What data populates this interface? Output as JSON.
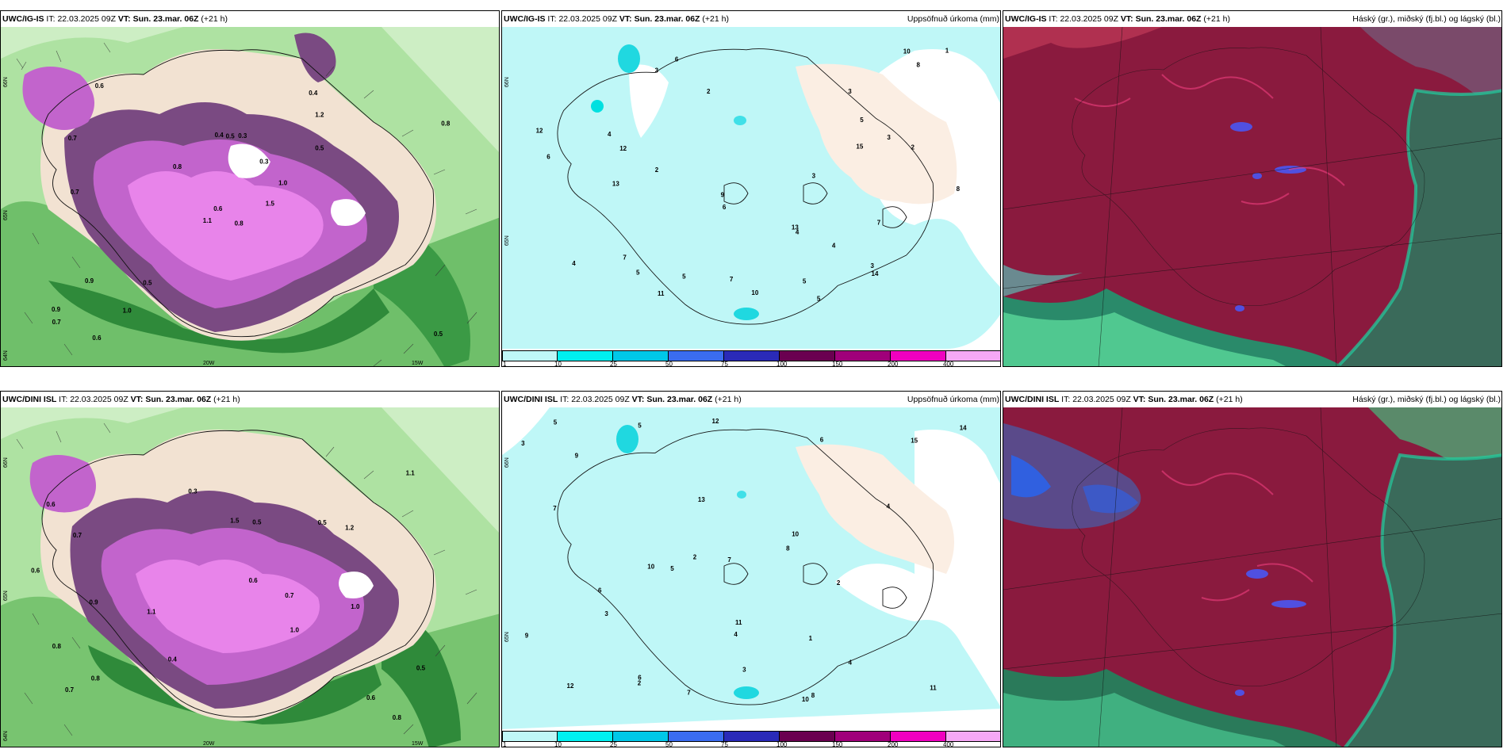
{
  "panels": [
    {
      "model": "UWC/IG-IS",
      "it": "22.03.2025 09Z",
      "vt_label": "VT:",
      "vt": "Sun. 23.mar. 06Z",
      "lead": "(+21 h)",
      "right_title": ""
    },
    {
      "model": "UWC/IG-IS",
      "it": "22.03.2025 09Z",
      "vt_label": "VT:",
      "vt": "Sun. 23.mar. 06Z",
      "lead": "(+21 h)",
      "right_title": "Uppsöfnuð úrkoma (mm)"
    },
    {
      "model": "UWC/IG-IS",
      "it": "22.03.2025 09Z",
      "vt_label": "VT:",
      "vt": "Sun. 23.mar. 06Z",
      "lead": "(+21 h)",
      "right_title": "Háský (gr.), miðský (fj.bl.) og lágský (bl.)"
    },
    {
      "model": "UWC/DINI ISL",
      "it": "22.03.2025 09Z",
      "vt_label": "VT:",
      "vt": "Sun. 23.mar. 06Z",
      "lead": "(+21 h)",
      "right_title": ""
    },
    {
      "model": "UWC/DINI ISL",
      "it": "22.03.2025 09Z",
      "vt_label": "VT:",
      "vt": "Sun. 23.mar. 06Z",
      "lead": "(+21 h)",
      "right_title": "Uppsöfnuð úrkoma (mm)"
    },
    {
      "model": "UWC/DINI ISL",
      "it": "22.03.2025 09Z",
      "vt_label": "VT:",
      "vt": "Sun. 23.mar. 06Z",
      "lead": "(+21 h)",
      "right_title": "Háský (gr.), miðský (fj.bl.) og lágský (bl.)"
    }
  ],
  "it_label": "IT:",
  "colorbar": {
    "ticks": [
      "1",
      "10",
      "25",
      "50",
      "75",
      "100",
      "150",
      "200",
      "400"
    ],
    "colors": [
      "#bff7f7",
      "#00f0f0",
      "#00c8e8",
      "#3a6cf0",
      "#2a2ab8",
      "#6a0050",
      "#a0007a",
      "#f000c0",
      "#f5a8f5"
    ]
  },
  "axis_labels": {
    "lat_66": "66N",
    "lat_65": "65N",
    "lat_64": "64N",
    "lon_20": "20W",
    "lon_15": "15W"
  },
  "precip_labels_top": [
    "5",
    "3",
    "7",
    "4",
    "3",
    "5",
    "8",
    "2",
    "6",
    "5",
    "4",
    "12",
    "9",
    "13",
    "15",
    "10",
    "6",
    "8",
    "7",
    "2",
    "3",
    "4",
    "11",
    "14",
    "3",
    "5",
    "13",
    "12",
    "10",
    "2",
    "4",
    "1",
    "3",
    "5",
    "6",
    "7"
  ],
  "precip_labels_bottom": [
    "7",
    "10",
    "6",
    "4",
    "5",
    "9",
    "10",
    "11",
    "12",
    "13",
    "15",
    "3",
    "2",
    "4",
    "6",
    "8",
    "7",
    "2",
    "5",
    "3",
    "1",
    "14",
    "10",
    "12",
    "4",
    "6",
    "9",
    "3",
    "5",
    "2",
    "7",
    "8",
    "11"
  ],
  "snow_labels_top": [
    "0.8",
    "0.7",
    "0.6",
    "0.9",
    "1.0",
    "0.5",
    "0.4",
    "0.3",
    "1.2",
    "1.5",
    "0.6",
    "0.5",
    "0.7",
    "0.8",
    "1.1",
    "0.5",
    "0.6",
    "0.4",
    "0.3",
    "0.9",
    "0.8",
    "0.7",
    "1.0",
    "0.5"
  ],
  "snow_labels_bottom": [
    "0.8",
    "0.9",
    "1.0",
    "0.6",
    "0.5",
    "0.7",
    "0.8",
    "1.1",
    "1.2",
    "1.5",
    "0.5",
    "0.6",
    "0.4",
    "0.3",
    "0.7",
    "0.8",
    "1.0",
    "0.6",
    "0.6",
    "0.7",
    "1.1",
    "0.5"
  ]
}
